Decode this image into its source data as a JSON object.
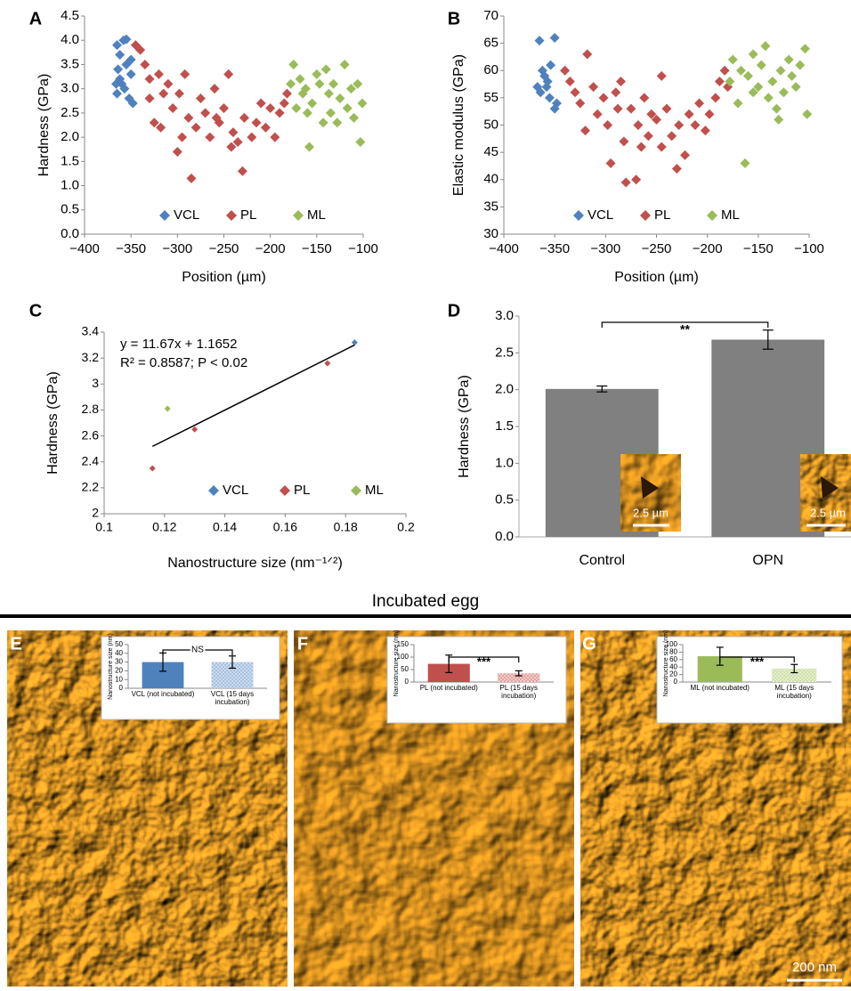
{
  "figure": {
    "section_title": "Incubated egg",
    "scale_bar": "200 nm"
  },
  "chart_data": [
    {
      "type": "scatter",
      "panel": "A",
      "xlabel": "Position (µm)",
      "ylabel": "Hardness (GPa)",
      "legend": "bottom",
      "xlim": [
        -400,
        -100
      ],
      "xticks": [
        {
          "value": -400,
          "label": "−400"
        },
        {
          "value": -350,
          "label": "−350"
        },
        {
          "value": -300,
          "label": "−300"
        },
        {
          "value": -250,
          "label": "−250"
        },
        {
          "value": -200,
          "label": "−200"
        },
        {
          "value": -150,
          "label": "−150"
        },
        {
          "value": -100,
          "label": "−100"
        }
      ],
      "ylim": [
        0,
        4.5
      ],
      "yticks": [
        {
          "value": 0,
          "label": "0.0"
        },
        {
          "value": 0.5,
          "label": "0.5"
        },
        {
          "value": 1,
          "label": "1.0"
        },
        {
          "value": 1.5,
          "label": "1.5"
        },
        {
          "value": 2,
          "label": "2.0"
        },
        {
          "value": 2.5,
          "label": "2.5"
        },
        {
          "value": 3,
          "label": "3.0"
        },
        {
          "value": 3.5,
          "label": "3.5"
        },
        {
          "value": 4,
          "label": "4.0"
        },
        {
          "value": 4.5,
          "label": "4.5"
        }
      ],
      "series": [
        {
          "name": "VCL",
          "color": "#4f81bd",
          "x": [
            -365,
            -362,
            -358,
            -355,
            -350,
            -364,
            -360,
            -365,
            -357,
            -352,
            -348,
            -362,
            -355,
            -350,
            -366
          ],
          "y": [
            3.9,
            3.7,
            4.0,
            4.02,
            3.6,
            3.4,
            3.1,
            2.9,
            3.0,
            2.8,
            2.7,
            3.2,
            3.5,
            3.3,
            3.1
          ]
        },
        {
          "name": "PL",
          "color": "#c0504d",
          "x": [
            -345,
            -340,
            -335,
            -330,
            -325,
            -320,
            -315,
            -310,
            -305,
            -300,
            -298,
            -292,
            -288,
            -285,
            -280,
            -275,
            -270,
            -265,
            -260,
            -255,
            -250,
            -245,
            -240,
            -235,
            -230,
            -228,
            -220,
            -215,
            -210,
            -205,
            -200,
            -195,
            -190,
            -185,
            -182,
            -330,
            -318,
            -295,
            -258,
            -242
          ],
          "y": [
            3.9,
            3.8,
            3.5,
            3.2,
            2.3,
            3.3,
            2.9,
            3.1,
            2.6,
            1.7,
            2.9,
            3.3,
            2.4,
            1.15,
            2.2,
            2.8,
            2.5,
            2.0,
            3.0,
            2.3,
            2.6,
            3.3,
            2.1,
            1.9,
            1.3,
            2.4,
            2.0,
            2.3,
            2.7,
            2.2,
            2.6,
            2.0,
            2.5,
            2.7,
            2.9,
            2.8,
            2.2,
            2.0,
            2.4,
            1.8
          ]
        },
        {
          "name": "ML",
          "color": "#9bbb59",
          "x": [
            -178,
            -175,
            -172,
            -168,
            -165,
            -162,
            -158,
            -155,
            -150,
            -147,
            -143,
            -140,
            -137,
            -132,
            -128,
            -125,
            -120,
            -117,
            -113,
            -110,
            -106,
            -103,
            -101,
            -135,
            -160
          ],
          "y": [
            3.1,
            3.5,
            2.6,
            3.2,
            2.9,
            3.0,
            1.8,
            2.7,
            3.3,
            3.1,
            2.3,
            3.4,
            2.9,
            3.1,
            2.3,
            2.8,
            3.5,
            2.6,
            3.0,
            2.4,
            3.1,
            1.9,
            2.7,
            2.5,
            2.5
          ]
        }
      ]
    },
    {
      "type": "scatter",
      "panel": "B",
      "xlabel": "Position (µm)",
      "ylabel": "Elastic modulus (GPa)",
      "legend": "bottom",
      "xlim": [
        -400,
        -100
      ],
      "xticks": [
        {
          "value": -400,
          "label": "−400"
        },
        {
          "value": -350,
          "label": "−350"
        },
        {
          "value": -300,
          "label": "−300"
        },
        {
          "value": -250,
          "label": "−250"
        },
        {
          "value": -200,
          "label": "−200"
        },
        {
          "value": -150,
          "label": "−150"
        },
        {
          "value": -100,
          "label": "−100"
        }
      ],
      "ylim": [
        30,
        70
      ],
      "yticks": [
        30,
        35,
        40,
        45,
        50,
        55,
        60,
        65,
        70
      ],
      "series": [
        {
          "name": "VCL",
          "color": "#4f81bd",
          "x": [
            -365,
            -350,
            -362,
            -357,
            -354,
            -367,
            -360,
            -355,
            -350,
            -364,
            -348,
            -358
          ],
          "y": [
            65.5,
            66,
            60,
            58,
            61,
            57,
            59,
            55,
            53,
            56,
            54,
            57
          ]
        },
        {
          "name": "PL",
          "color": "#c0504d",
          "x": [
            -340,
            -335,
            -330,
            -325,
            -318,
            -312,
            -308,
            -302,
            -298,
            -295,
            -290,
            -285,
            -282,
            -280,
            -275,
            -270,
            -268,
            -262,
            -258,
            -255,
            -250,
            -245,
            -240,
            -235,
            -230,
            -228,
            -222,
            -218,
            -212,
            -208,
            -202,
            -198,
            -192,
            -188,
            -183,
            -180,
            -320,
            -288,
            -245,
            -265
          ],
          "y": [
            60,
            58,
            56,
            54,
            63,
            57,
            52,
            55,
            50,
            43,
            56,
            58,
            47,
            39.5,
            53,
            40,
            50,
            55,
            48,
            52,
            51,
            46,
            53,
            48,
            42,
            50,
            44.5,
            52,
            50,
            54,
            49,
            52,
            55,
            58,
            60,
            57,
            49,
            53,
            59,
            46
          ]
        },
        {
          "name": "ML",
          "color": "#9bbb59",
          "x": [
            -178,
            -175,
            -170,
            -167,
            -163,
            -160,
            -155,
            -150,
            -147,
            -143,
            -140,
            -136,
            -132,
            -128,
            -125,
            -120,
            -117,
            -113,
            -109,
            -104,
            -102,
            -130,
            -155
          ],
          "y": [
            58,
            62,
            54,
            60,
            43,
            59,
            63,
            57,
            61,
            64.5,
            55,
            58,
            53,
            60,
            56,
            62,
            59,
            57,
            61,
            64,
            52,
            51,
            56
          ]
        }
      ]
    },
    {
      "type": "scatter",
      "panel": "C",
      "xlabel": "Nanostructure size (nm⁻¹ᐟ²)",
      "ylabel": "Hardness (GPa)",
      "legend": "lower right",
      "annotations": [
        "y = 11.67x + 1.1652",
        "R² = 0.8587; P < 0.02"
      ],
      "trendline": {
        "slope": 11.67,
        "intercept": 1.1652,
        "x_range": [
          0.116,
          0.183
        ]
      },
      "xlim": [
        0.1,
        0.2
      ],
      "xticks": [
        0.1,
        0.12,
        0.14,
        0.16,
        0.18,
        0.2
      ],
      "ylim": [
        2,
        3.4
      ],
      "yticks": [
        2,
        2.2,
        2.4,
        2.6,
        2.8,
        3,
        3.2,
        3.4
      ],
      "series": [
        {
          "name": "VCL",
          "color": "#4f81bd",
          "x": [
            0.183
          ],
          "y": [
            3.32
          ]
        },
        {
          "name": "PL",
          "color": "#c0504d",
          "x": [
            0.174,
            0.13,
            0.116
          ],
          "y": [
            3.16,
            2.65,
            2.35
          ]
        },
        {
          "name": "ML",
          "color": "#9bbb59",
          "x": [
            0.121
          ],
          "y": [
            2.81
          ]
        }
      ]
    },
    {
      "type": "bar",
      "panel": "D",
      "ylabel": "Hardness (GPa)",
      "significance": "**",
      "inset_labels": [
        "2.5 µm",
        "2.5 µm"
      ],
      "categories": [
        "Control",
        "OPN"
      ],
      "values": [
        2.01,
        2.68
      ],
      "errors": [
        0.04,
        0.13
      ],
      "colors": [
        "#808080",
        "#808080"
      ],
      "hatched": [
        false,
        false
      ],
      "ylim": [
        0,
        3
      ],
      "yticks": [
        {
          "value": 0,
          "label": "0.0"
        },
        {
          "value": 0.5,
          "label": "0.5"
        },
        {
          "value": 1,
          "label": "1.0"
        },
        {
          "value": 1.5,
          "label": "1.5"
        },
        {
          "value": 2,
          "label": "2.0"
        },
        {
          "value": 2.5,
          "label": "2.5"
        },
        {
          "value": 3,
          "label": "3.0"
        }
      ]
    },
    {
      "type": "bar",
      "panel": "E",
      "ylabel": "Nanostructure size (nm)",
      "significance": "NS",
      "categories": [
        "VCL (not incubated)",
        "VCL (15 days incubation)"
      ],
      "values": [
        30,
        30
      ],
      "errors": [
        10.5,
        7
      ],
      "colors": [
        "#4f81bd",
        "#a7c0e0"
      ],
      "hatched": [
        false,
        true
      ],
      "ylim": [
        0,
        50
      ],
      "yticks": [
        0,
        10,
        20,
        30,
        40,
        50
      ]
    },
    {
      "type": "bar",
      "panel": "F",
      "ylabel": "Nanostructure size (nm)",
      "significance": "***",
      "categories": [
        "PL (not incubated)",
        "PL (15 days incubation)"
      ],
      "values": [
        73,
        35
      ],
      "errors": [
        35,
        10
      ],
      "colors": [
        "#c0504d",
        "#e3a3a1"
      ],
      "hatched": [
        false,
        true
      ],
      "ylim": [
        0,
        150
      ],
      "yticks": [
        0,
        50,
        100,
        150
      ]
    },
    {
      "type": "bar",
      "panel": "G",
      "ylabel": "Nanostructure size (nm)",
      "significance": "***",
      "categories": [
        "ML (not incubated)",
        "ML (15 days incubation)"
      ],
      "values": [
        69,
        36
      ],
      "errors": [
        24,
        11
      ],
      "colors": [
        "#9bbb59",
        "#cfe0a9"
      ],
      "hatched": [
        false,
        true
      ],
      "ylim": [
        0,
        100
      ],
      "yticks": [
        0,
        20,
        40,
        60,
        80,
        100
      ]
    }
  ]
}
